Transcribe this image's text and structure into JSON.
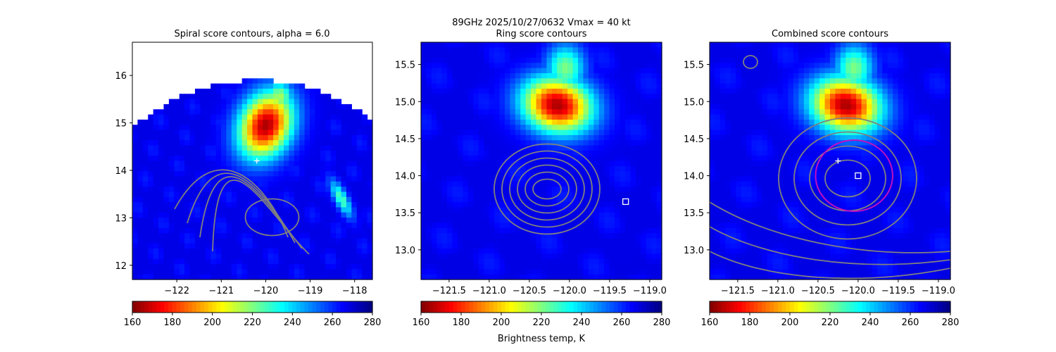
{
  "figure": {
    "suptitle": "89GHz  2025/10/27/0632    Vmax = 40 kt",
    "colorbar_label": "Brightness temp, K"
  },
  "colors": {
    "contour": "#808080",
    "ring": "#c010c0",
    "marker": "#ffffff"
  },
  "chart_data": [
    {
      "type": "heatmap",
      "title": "Spiral score contours, alpha =  6.0",
      "xlim": [
        -123.0,
        -117.6
      ],
      "ylim": [
        11.7,
        16.7
      ],
      "xticks": [
        -122,
        -121,
        -120,
        -119,
        -118
      ],
      "xtick_labels": [
        "−122",
        "−121",
        "−120",
        "−119",
        "−118"
      ],
      "yticks": [
        12,
        13,
        14,
        15,
        16
      ],
      "ytick_labels": [
        "12",
        "13",
        "14",
        "15",
        "16"
      ],
      "swath": {
        "center": [
          -120.2,
          11.5
        ],
        "radius_deg": 4.4
      },
      "cold_features": [
        {
          "lon": -120.0,
          "lat": 14.95,
          "rx": 0.7,
          "ry": 0.9,
          "tb_min": 165,
          "angle": -30
        },
        {
          "lon": -119.7,
          "lat": 15.55,
          "rx": 0.4,
          "ry": 0.4,
          "tb_min": 215,
          "angle": 0
        },
        {
          "lon": -118.3,
          "lat": 13.4,
          "rx": 0.18,
          "ry": 0.55,
          "tb_min": 225,
          "angle": 30
        }
      ],
      "markers": [
        {
          "symbol": "plus",
          "lon": -120.2,
          "lat": 14.2
        }
      ],
      "colormap": "jet_r",
      "vmin": 160,
      "vmax": 280,
      "colorbar_ticks": [
        "160",
        "180",
        "200",
        "220",
        "240",
        "260",
        "280"
      ]
    },
    {
      "type": "heatmap",
      "title": "Ring score contours",
      "xlim": [
        -121.85,
        -118.85
      ],
      "ylim": [
        12.6,
        15.8
      ],
      "xticks": [
        -121.5,
        -121.0,
        -120.5,
        -120.0,
        -119.5,
        -119.0
      ],
      "xtick_labels": [
        "−121.5",
        "−121.0",
        "−120.5",
        "−120.0",
        "−119.5",
        "−119.0"
      ],
      "yticks": [
        13.0,
        13.5,
        14.0,
        14.5,
        15.0,
        15.5
      ],
      "ytick_labels": [
        "13.0",
        "13.5",
        "14.0",
        "14.5",
        "15.0",
        "15.5"
      ],
      "cold_features": [
        {
          "lon": -120.15,
          "lat": 14.95,
          "rx": 0.55,
          "ry": 0.45,
          "tb_min": 165,
          "angle": -20
        },
        {
          "lon": -120.05,
          "lat": 15.45,
          "rx": 0.3,
          "ry": 0.4,
          "tb_min": 220,
          "angle": 0
        }
      ],
      "markers": [
        {
          "symbol": "square",
          "lon": -119.3,
          "lat": 13.65
        }
      ],
      "colormap": "jet_r",
      "vmin": 160,
      "vmax": 280,
      "colorbar_ticks": [
        "160",
        "180",
        "200",
        "220",
        "240",
        "260",
        "280"
      ]
    },
    {
      "type": "heatmap",
      "title": "Combined score contours",
      "xlim": [
        -121.85,
        -118.85
      ],
      "ylim": [
        12.6,
        15.8
      ],
      "xticks": [
        -121.5,
        -121.0,
        -120.5,
        -120.0,
        -119.5,
        -119.0
      ],
      "xtick_labels": [
        "−121.5",
        "−121.0",
        "−120.5",
        "−120.0",
        "−119.5",
        "−119.0"
      ],
      "yticks": [
        13.0,
        13.5,
        14.0,
        14.5,
        15.0,
        15.5
      ],
      "ytick_labels": [
        "13.0",
        "13.5",
        "14.0",
        "14.5",
        "15.0",
        "15.5"
      ],
      "cold_features": [
        {
          "lon": -120.15,
          "lat": 14.95,
          "rx": 0.55,
          "ry": 0.45,
          "tb_min": 165,
          "angle": -20
        },
        {
          "lon": -120.05,
          "lat": 15.45,
          "rx": 0.3,
          "ry": 0.4,
          "tb_min": 220,
          "angle": 0
        }
      ],
      "markers": [
        {
          "symbol": "plus",
          "lon": -120.25,
          "lat": 14.2
        },
        {
          "symbol": "square",
          "lon": -120.0,
          "lat": 14.0
        }
      ],
      "ring": {
        "lon": -120.05,
        "lat": 14.0,
        "radius_deg": 0.48
      },
      "colormap": "jet_r",
      "vmin": 160,
      "vmax": 280,
      "colorbar_ticks": [
        "160",
        "180",
        "200",
        "220",
        "240",
        "260",
        "280"
      ]
    }
  ]
}
